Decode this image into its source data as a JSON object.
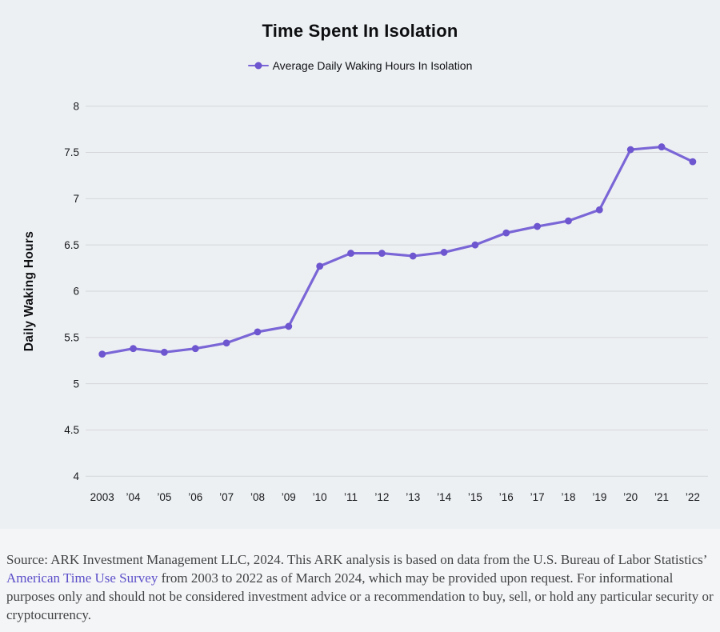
{
  "page": {
    "chart_background": "#edf0f3",
    "footer_background": "#f4f5f7",
    "gridline_color": "#d4d6d9"
  },
  "header": {
    "title": "Time Spent In Isolation"
  },
  "legend": {
    "label": "Average Daily Waking Hours In Isolation"
  },
  "chart_data": {
    "type": "line",
    "title": "Time Spent In Isolation",
    "xlabel": "",
    "ylabel": "Daily Waking Hours",
    "categories": [
      "2003",
      "’04",
      "’05",
      "’06",
      "’07",
      "’08",
      "’09",
      "’10",
      "’11",
      "’12",
      "’13",
      "’14",
      "’15",
      "’16",
      "’17",
      "’18",
      "’19",
      "’20",
      "’21",
      "’22"
    ],
    "series": [
      {
        "name": "Average Daily Waking Hours In Isolation",
        "values": [
          5.32,
          5.38,
          5.34,
          5.38,
          5.44,
          5.56,
          5.62,
          6.27,
          6.41,
          6.41,
          6.38,
          6.42,
          6.5,
          6.63,
          6.7,
          6.76,
          6.88,
          7.53,
          7.56,
          7.4
        ]
      }
    ],
    "ylim": [
      4,
      8
    ],
    "yticks": [
      8,
      7.5,
      7,
      6.5,
      6,
      5.5,
      5,
      4.5,
      4
    ],
    "grid": true,
    "legend_position": "top",
    "line_color": "#7a66d6",
    "marker_color": "#6d56cf"
  },
  "footer": {
    "text_before_link": "Source: ARK Investment Management LLC, 2024. This ARK analysis is based on data from the U.S. Bureau of Labor Statistics’ ",
    "link_text": "American Time Use Survey",
    "text_after_link": " from 2003 to 2022 as of March 2024, which may be provided upon request. For informational purposes only and should not be considered investment advice or a recommendation to buy, sell, or hold any particular security or cryptocurrency.",
    "link_color": "#5b4ec9"
  }
}
